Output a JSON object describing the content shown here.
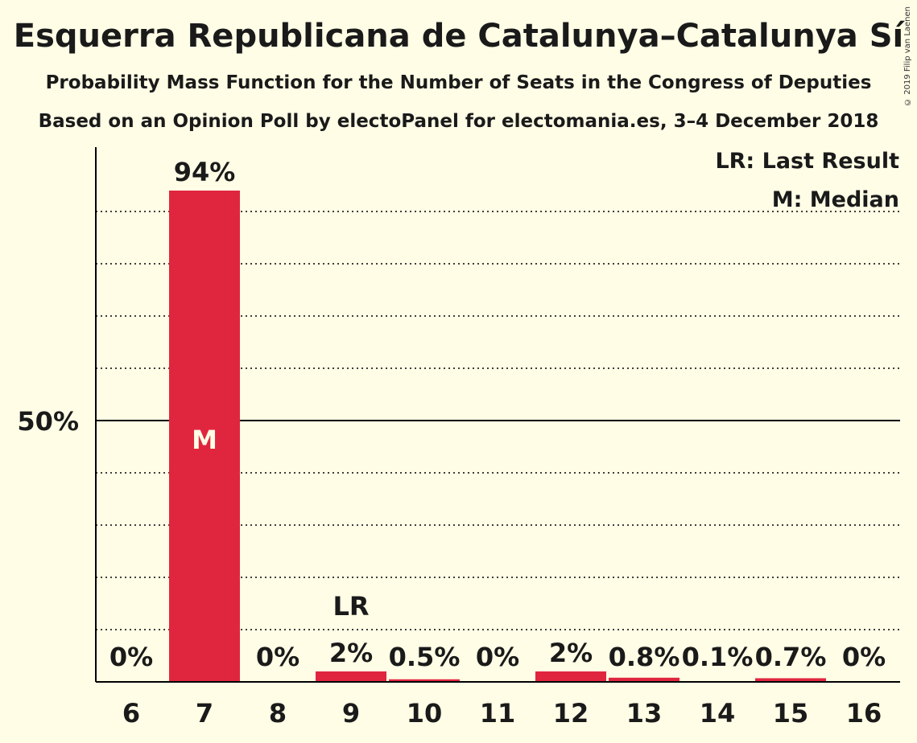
{
  "title": "Esquerra Republicana de Catalunya–Catalunya Sí",
  "subtitle1": "Probability Mass Function for the Number of Seats in the Congress of Deputies",
  "subtitle2": "Based on an Opinion Poll by electoPanel for electomania.es, 3–4 December 2018",
  "copyright": "© 2019 Filip van Laenen",
  "legend": {
    "last_result": "LR: Last Result",
    "median": "M: Median"
  },
  "colors": {
    "bar": "#e0263f",
    "background": "#fffde6",
    "axis": "#000000"
  },
  "chart_data": {
    "type": "bar",
    "categories": [
      "6",
      "7",
      "8",
      "9",
      "10",
      "11",
      "12",
      "13",
      "14",
      "15",
      "16"
    ],
    "values": [
      0,
      94,
      0,
      2,
      0.5,
      0,
      2,
      0.8,
      0.1,
      0.7,
      0
    ],
    "value_labels": [
      "0%",
      "94%",
      "0%",
      "2%",
      "0.5%",
      "0%",
      "2%",
      "0.8%",
      "0.1%",
      "0.7%",
      "0%"
    ],
    "ylim": [
      0,
      102
    ],
    "ytick_label": "50%",
    "ytick_value": 50,
    "gridlines": [
      10,
      20,
      30,
      40,
      60,
      70,
      80,
      90
    ],
    "markers": [
      {
        "category": "7",
        "label": "M",
        "position": "inside"
      },
      {
        "category": "9",
        "label": "LR",
        "position": "above"
      }
    ]
  }
}
